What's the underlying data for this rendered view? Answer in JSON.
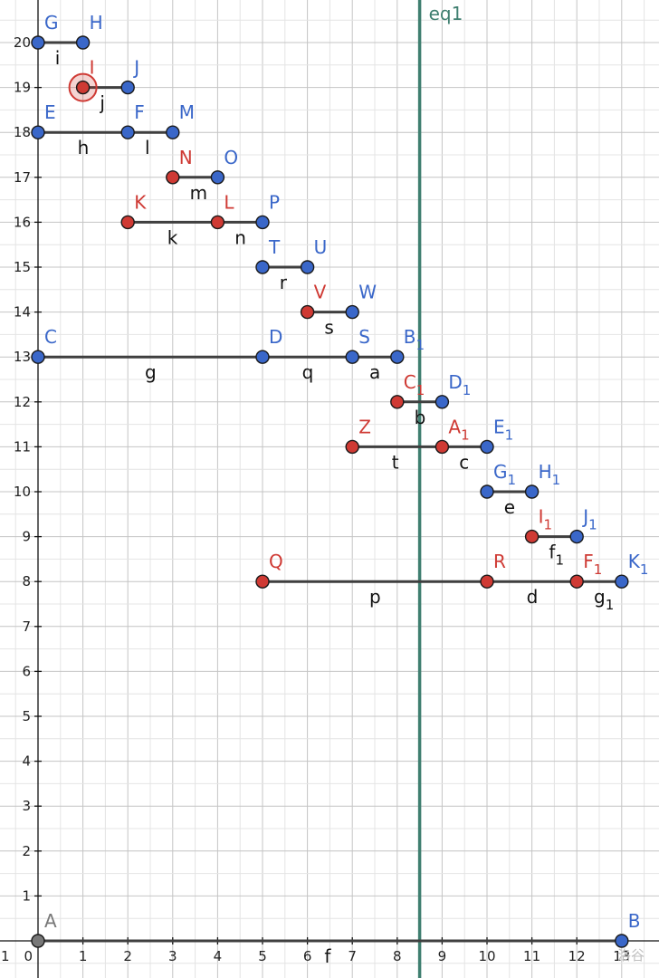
{
  "colors": {
    "blue": "#3a67c9",
    "red": "#cf3a34",
    "gray": "#787878",
    "segment": "#3f3f3f",
    "line": "#3f7f70"
  },
  "axis": {
    "x_ticks": [
      0,
      1,
      2,
      3,
      4,
      5,
      6,
      7,
      8,
      9,
      10,
      11,
      12,
      13
    ],
    "y_ticks": [
      1,
      2,
      3,
      4,
      5,
      6,
      7,
      8,
      9,
      10,
      11,
      12,
      13,
      14,
      15,
      16,
      17,
      18,
      19,
      20
    ],
    "x_range": [
      -0.85,
      13.85
    ],
    "y_range": [
      -0.8,
      20.9
    ],
    "left_edge_tick": "1"
  },
  "line": {
    "name": "eq1",
    "x": 8.5
  },
  "points": [
    {
      "name": "G",
      "sub": "",
      "x": 0,
      "y": 20,
      "color": "blue"
    },
    {
      "name": "H",
      "sub": "",
      "x": 1,
      "y": 20,
      "color": "blue"
    },
    {
      "name": "I",
      "sub": "",
      "x": 1,
      "y": 19,
      "color": "red",
      "selected": true
    },
    {
      "name": "J",
      "sub": "",
      "x": 2,
      "y": 19,
      "color": "blue"
    },
    {
      "name": "E",
      "sub": "",
      "x": 0,
      "y": 18,
      "color": "blue"
    },
    {
      "name": "F",
      "sub": "",
      "x": 2,
      "y": 18,
      "color": "blue"
    },
    {
      "name": "M",
      "sub": "",
      "x": 3,
      "y": 18,
      "color": "blue"
    },
    {
      "name": "N",
      "sub": "",
      "x": 3,
      "y": 17,
      "color": "red"
    },
    {
      "name": "O",
      "sub": "",
      "x": 4,
      "y": 17,
      "color": "blue"
    },
    {
      "name": "K",
      "sub": "",
      "x": 2,
      "y": 16,
      "color": "red"
    },
    {
      "name": "L",
      "sub": "",
      "x": 4,
      "y": 16,
      "color": "red"
    },
    {
      "name": "P",
      "sub": "",
      "x": 5,
      "y": 16,
      "color": "blue"
    },
    {
      "name": "T",
      "sub": "",
      "x": 5,
      "y": 15,
      "color": "blue"
    },
    {
      "name": "U",
      "sub": "",
      "x": 6,
      "y": 15,
      "color": "blue"
    },
    {
      "name": "V",
      "sub": "",
      "x": 6,
      "y": 14,
      "color": "red"
    },
    {
      "name": "W",
      "sub": "",
      "x": 7,
      "y": 14,
      "color": "blue"
    },
    {
      "name": "C",
      "sub": "",
      "x": 0,
      "y": 13,
      "color": "blue"
    },
    {
      "name": "D",
      "sub": "",
      "x": 5,
      "y": 13,
      "color": "blue"
    },
    {
      "name": "S",
      "sub": "",
      "x": 7,
      "y": 13,
      "color": "blue"
    },
    {
      "name": "B",
      "sub": "1",
      "x": 8,
      "y": 13,
      "color": "blue"
    },
    {
      "name": "C",
      "sub": "1",
      "x": 8,
      "y": 12,
      "color": "red"
    },
    {
      "name": "D",
      "sub": "1",
      "x": 9,
      "y": 12,
      "color": "blue"
    },
    {
      "name": "Z",
      "sub": "",
      "x": 7,
      "y": 11,
      "color": "red"
    },
    {
      "name": "A",
      "sub": "1",
      "x": 9,
      "y": 11,
      "color": "red"
    },
    {
      "name": "E",
      "sub": "1",
      "x": 10,
      "y": 11,
      "color": "blue"
    },
    {
      "name": "G",
      "sub": "1",
      "x": 10,
      "y": 10,
      "color": "blue"
    },
    {
      "name": "H",
      "sub": "1",
      "x": 11,
      "y": 10,
      "color": "blue"
    },
    {
      "name": "I",
      "sub": "1",
      "x": 11,
      "y": 9,
      "color": "red"
    },
    {
      "name": "J",
      "sub": "1",
      "x": 12,
      "y": 9,
      "color": "blue"
    },
    {
      "name": "Q",
      "sub": "",
      "x": 5,
      "y": 8,
      "color": "red"
    },
    {
      "name": "R",
      "sub": "",
      "x": 10,
      "y": 8,
      "color": "red"
    },
    {
      "name": "F",
      "sub": "1",
      "x": 12,
      "y": 8,
      "color": "red"
    },
    {
      "name": "K",
      "sub": "1",
      "x": 13,
      "y": 8,
      "color": "blue"
    },
    {
      "name": "A",
      "sub": "",
      "x": 0,
      "y": 0,
      "color": "gray"
    },
    {
      "name": "B",
      "sub": "",
      "x": 13,
      "y": 0,
      "color": "blue"
    }
  ],
  "segments": [
    {
      "name": "i",
      "sub": "",
      "x1": 0,
      "y1": 20,
      "x2": 1,
      "y2": 20
    },
    {
      "name": "j",
      "sub": "",
      "x1": 1,
      "y1": 19,
      "x2": 2,
      "y2": 19
    },
    {
      "name": "h",
      "sub": "",
      "x1": 0,
      "y1": 18,
      "x2": 2,
      "y2": 18
    },
    {
      "name": "l",
      "sub": "",
      "x1": 2,
      "y1": 18,
      "x2": 3,
      "y2": 18
    },
    {
      "name": "m",
      "sub": "",
      "x1": 3,
      "y1": 17,
      "x2": 4,
      "y2": 17
    },
    {
      "name": "k",
      "sub": "",
      "x1": 2,
      "y1": 16,
      "x2": 4,
      "y2": 16
    },
    {
      "name": "n",
      "sub": "",
      "x1": 4,
      "y1": 16,
      "x2": 5,
      "y2": 16
    },
    {
      "name": "r",
      "sub": "",
      "x1": 5,
      "y1": 15,
      "x2": 6,
      "y2": 15
    },
    {
      "name": "s",
      "sub": "",
      "x1": 6,
      "y1": 14,
      "x2": 7,
      "y2": 14
    },
    {
      "name": "g",
      "sub": "",
      "x1": 0,
      "y1": 13,
      "x2": 5,
      "y2": 13
    },
    {
      "name": "q",
      "sub": "",
      "x1": 5,
      "y1": 13,
      "x2": 7,
      "y2": 13
    },
    {
      "name": "a",
      "sub": "",
      "x1": 7,
      "y1": 13,
      "x2": 8,
      "y2": 13
    },
    {
      "name": "b",
      "sub": "",
      "x1": 8,
      "y1": 12,
      "x2": 9,
      "y2": 12
    },
    {
      "name": "t",
      "sub": "",
      "x1": 7,
      "y1": 11,
      "x2": 9,
      "y2": 11
    },
    {
      "name": "c",
      "sub": "",
      "x1": 9,
      "y1": 11,
      "x2": 10,
      "y2": 11
    },
    {
      "name": "e",
      "sub": "",
      "x1": 10,
      "y1": 10,
      "x2": 11,
      "y2": 10
    },
    {
      "name": "f",
      "sub": "1",
      "x1": 11,
      "y1": 9,
      "x2": 12,
      "y2": 9
    },
    {
      "name": "p",
      "sub": "",
      "x1": 5,
      "y1": 8,
      "x2": 10,
      "y2": 8
    },
    {
      "name": "d",
      "sub": "",
      "x1": 10,
      "y1": 8,
      "x2": 12,
      "y2": 8
    },
    {
      "name": "g",
      "sub": "1",
      "x1": 12,
      "y1": 8,
      "x2": 13,
      "y2": 8
    },
    {
      "name": "f",
      "sub": "",
      "x1": 0,
      "y1": 0,
      "x2": 13,
      "y2": 0
    }
  ],
  "watermark": "洛谷"
}
